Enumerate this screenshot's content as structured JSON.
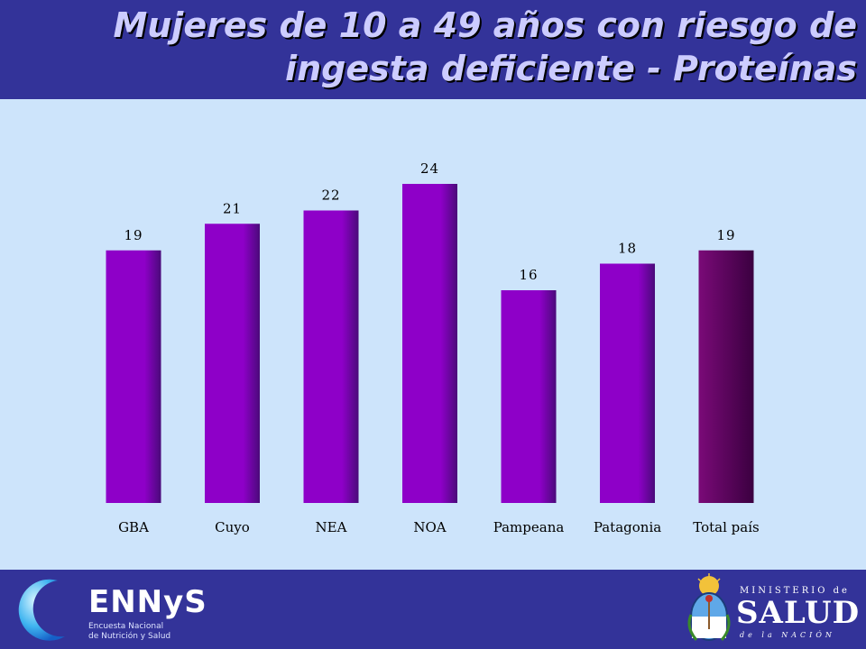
{
  "slide": {
    "title_line1": "Mujeres de 10 a 49 años con riesgo de",
    "title_line2": "ingesta deficiente - Proteínas"
  },
  "chart_data": {
    "type": "bar",
    "categories": [
      "GBA",
      "Cuyo",
      "NEA",
      "NOA",
      "Pampeana",
      "Patagonia",
      "Total país"
    ],
    "values": [
      19,
      21,
      22,
      24,
      16,
      18,
      19
    ],
    "data_labels": [
      "19",
      "21",
      "22",
      "24",
      "16",
      "18",
      "19"
    ],
    "title": "",
    "xlabel": "",
    "ylabel": "",
    "ylim": [
      0,
      24
    ],
    "grid": false,
    "legend": "none",
    "colors": {
      "region_bar": "#8e00c8",
      "region_bar_dark": "#4a0a7a",
      "total_bar": "#7a0a78",
      "total_bar_dark": "#3b0040",
      "label_color": "#000000"
    }
  },
  "footer": {
    "left_logo": {
      "name": "ENNyS",
      "subtitle_line1": "Encuesta Nacional",
      "subtitle_line2": "de Nutrición y Salud"
    },
    "right_logo": {
      "line1": "MINISTERIO de",
      "line2": "SALUD",
      "line3": "de la NACIÓN",
      "emblem": "coat-of-arms-icon"
    }
  },
  "colors": {
    "header_bg": "#333399",
    "chart_bg": "#cde4fb",
    "title_text": "#ccccff"
  }
}
